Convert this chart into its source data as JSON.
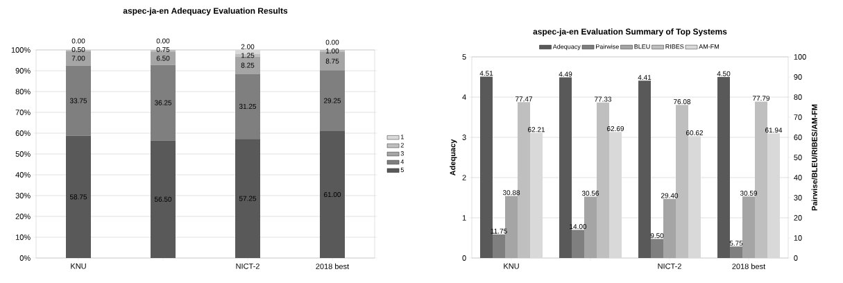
{
  "chart_data": [
    {
      "type": "bar",
      "title": "aspec-ja-en Adequacy Evaluation Results",
      "categories": [
        "KNU",
        null,
        "NICT-2",
        "2018 best"
      ],
      "stacked": true,
      "grid": "y",
      "legend": "right",
      "ylim": [
        0,
        100
      ],
      "yticks": [
        {
          "value": 0,
          "label": "0%"
        },
        {
          "value": 10,
          "label": "10%"
        },
        {
          "value": 20,
          "label": "20%"
        },
        {
          "value": 30,
          "label": "30%"
        },
        {
          "value": 40,
          "label": "40%"
        },
        {
          "value": 50,
          "label": "50%"
        },
        {
          "value": 60,
          "label": "60%"
        },
        {
          "value": 70,
          "label": "70%"
        },
        {
          "value": 80,
          "label": "80%"
        },
        {
          "value": 90,
          "label": "90%"
        },
        {
          "value": 100,
          "label": "100%"
        }
      ],
      "series": [
        {
          "name": "5",
          "color": "#595959",
          "values": [
            58.75,
            56.5,
            57.25,
            61
          ],
          "value_labels": [
            "58.75",
            "56.50",
            "57.25",
            "61.00"
          ]
        },
        {
          "name": "4",
          "color": "#7f7f7f",
          "values": [
            33.75,
            36.25,
            31.25,
            29.25
          ],
          "value_labels": [
            "33.75",
            "36.25",
            "31.25",
            "29.25"
          ]
        },
        {
          "name": "3",
          "color": "#a5a5a5",
          "values": [
            7,
            6.5,
            8.25,
            8.75
          ],
          "value_labels": [
            "7.00",
            "6.50",
            "8.25",
            "8.75"
          ]
        },
        {
          "name": "2",
          "color": "#bfbfbf",
          "values": [
            0.5,
            0.75,
            1.25,
            1
          ],
          "value_labels": [
            "0.50",
            "0.75",
            "1.25",
            "1.00"
          ]
        },
        {
          "name": "1",
          "color": "#d9d9d9",
          "values": [
            0,
            0,
            2,
            0
          ],
          "value_labels": [
            "0.00",
            "0.00",
            "2.00",
            "0.00"
          ]
        }
      ]
    },
    {
      "type": "bar",
      "title": "aspec-ja-en Evaluation Summary of Top Systems",
      "ylabel": "Adequacy",
      "y2label": "Pairwise/BLEU/RIBES/AM-FM",
      "categories": [
        "KNU",
        null,
        "NICT-2",
        "2018 best"
      ],
      "grid": "y",
      "legend": "top",
      "ylim": [
        0,
        5
      ],
      "yticks": [
        0,
        1,
        2,
        3,
        4,
        5
      ],
      "y2lim": [
        0,
        100
      ],
      "y2ticks": [
        0,
        10,
        20,
        30,
        40,
        50,
        60,
        70,
        80,
        90,
        100
      ],
      "series": [
        {
          "name": "Adequacy",
          "color": "#595959",
          "values": [
            4.51,
            4.49,
            4.41,
            4.5
          ],
          "value_labels": [
            "4.51",
            "4.49",
            "4.41",
            "4.50"
          ]
        },
        {
          "name": "Pairwise",
          "color": "#7f7f7f",
          "axis": "y2",
          "values": [
            11.75,
            14,
            9.5,
            5.75
          ],
          "value_labels": [
            "11.75",
            "14.00",
            "9.50",
            "5.75"
          ]
        },
        {
          "name": "BLEU",
          "color": "#a5a5a5",
          "axis": "y2",
          "values": [
            30.88,
            30.56,
            29.4,
            30.59
          ],
          "value_labels": [
            "30.88",
            "30.56",
            "29.40",
            "30.59"
          ]
        },
        {
          "name": "RIBES",
          "color": "#bfbfbf",
          "axis": "y2",
          "values": [
            77.47,
            77.33,
            76.08,
            77.79
          ],
          "value_labels": [
            "77.47",
            "77.33",
            "76.08",
            "77.79"
          ]
        },
        {
          "name": "AM-FM",
          "color": "#d9d9d9",
          "axis": "y2",
          "values": [
            62.21,
            62.69,
            60.62,
            61.94
          ],
          "value_labels": [
            "62.21",
            "62.69",
            "60.62",
            "61.94"
          ]
        }
      ]
    }
  ]
}
